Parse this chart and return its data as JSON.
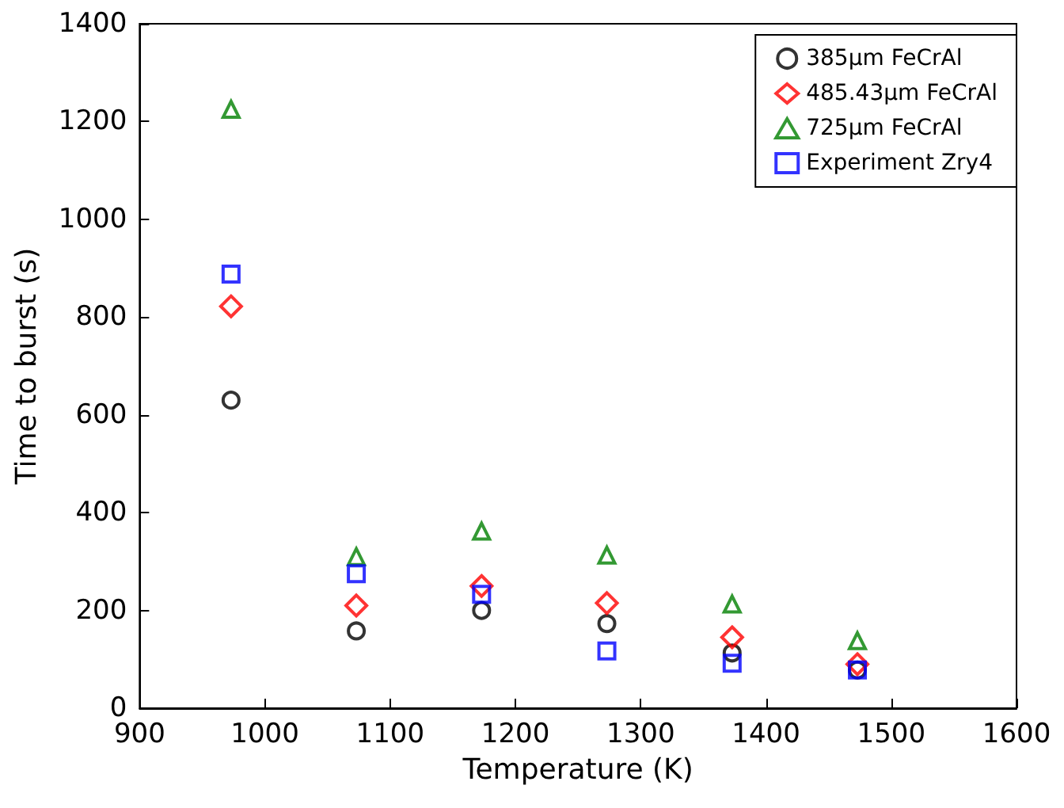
{
  "chart_data": {
    "type": "scatter",
    "xlabel": "Temperature (K)",
    "ylabel": "Time to burst (s)",
    "x": [
      973,
      1073,
      1173,
      1273,
      1373,
      1473
    ],
    "series": [
      {
        "name": "385μm FeCrAl",
        "color": "#000000",
        "marker": "circle",
        "values": [
          630,
          158,
          200,
          173,
          113,
          78
        ]
      },
      {
        "name": "485.43μm FeCrAl",
        "color": "#ff0000",
        "marker": "diamond",
        "values": [
          822,
          210,
          250,
          215,
          145,
          90
        ]
      },
      {
        "name": "725μm FeCrAl",
        "color": "#008000",
        "marker": "triangle",
        "values": [
          1225,
          310,
          362,
          313,
          213,
          138
        ]
      },
      {
        "name": "Experiment Zry4",
        "color": "#0000ff",
        "marker": "square",
        "values": [
          888,
          275,
          233,
          117,
          92,
          78
        ]
      }
    ],
    "xlim": [
      900,
      1600
    ],
    "xticks": [
      900,
      1000,
      1100,
      1200,
      1300,
      1400,
      1500,
      1600
    ],
    "ylim": [
      0,
      1400
    ],
    "yticks": [
      0,
      200,
      400,
      600,
      800,
      1000,
      1200,
      1400
    ],
    "grid": false,
    "legend": "top right"
  }
}
